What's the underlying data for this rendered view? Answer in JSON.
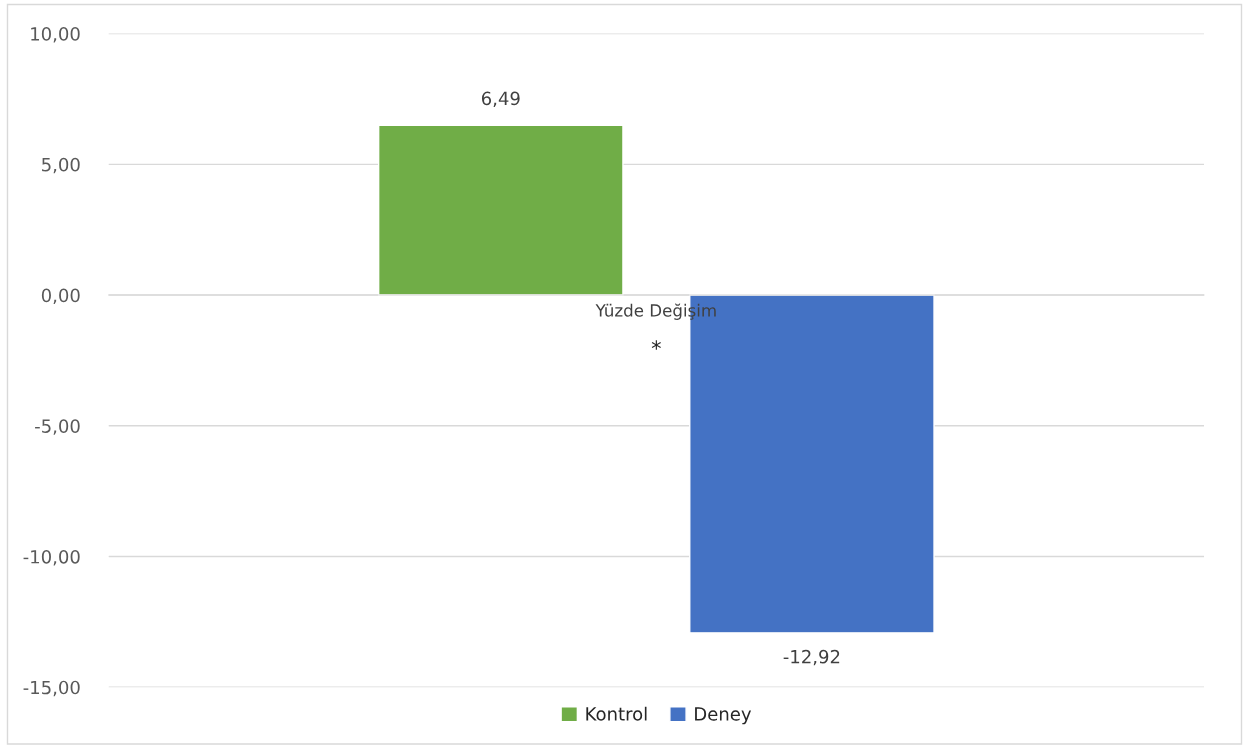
{
  "chart_data": {
    "type": "bar",
    "categories": [
      "Yüzde Değişim"
    ],
    "series": [
      {
        "name": "Kontrol",
        "color": "#70ad47",
        "values": [
          6.49
        ],
        "value_labels": [
          "6,49"
        ]
      },
      {
        "name": "Deney",
        "color": "#4472c4",
        "values": [
          -12.92
        ],
        "value_labels": [
          "-12,92"
        ]
      }
    ],
    "ylim": [
      -15,
      10
    ],
    "yticks": [
      {
        "value": -15,
        "label": "-15,00"
      },
      {
        "value": -10,
        "label": "-10,00"
      },
      {
        "value": -5,
        "label": "-5,00"
      },
      {
        "value": 0,
        "label": "0,00"
      },
      {
        "value": 5,
        "label": "5,00"
      },
      {
        "value": 10,
        "label": "10,00"
      }
    ],
    "annotations": [
      "*"
    ],
    "grid": "y",
    "legend": "bottom"
  }
}
